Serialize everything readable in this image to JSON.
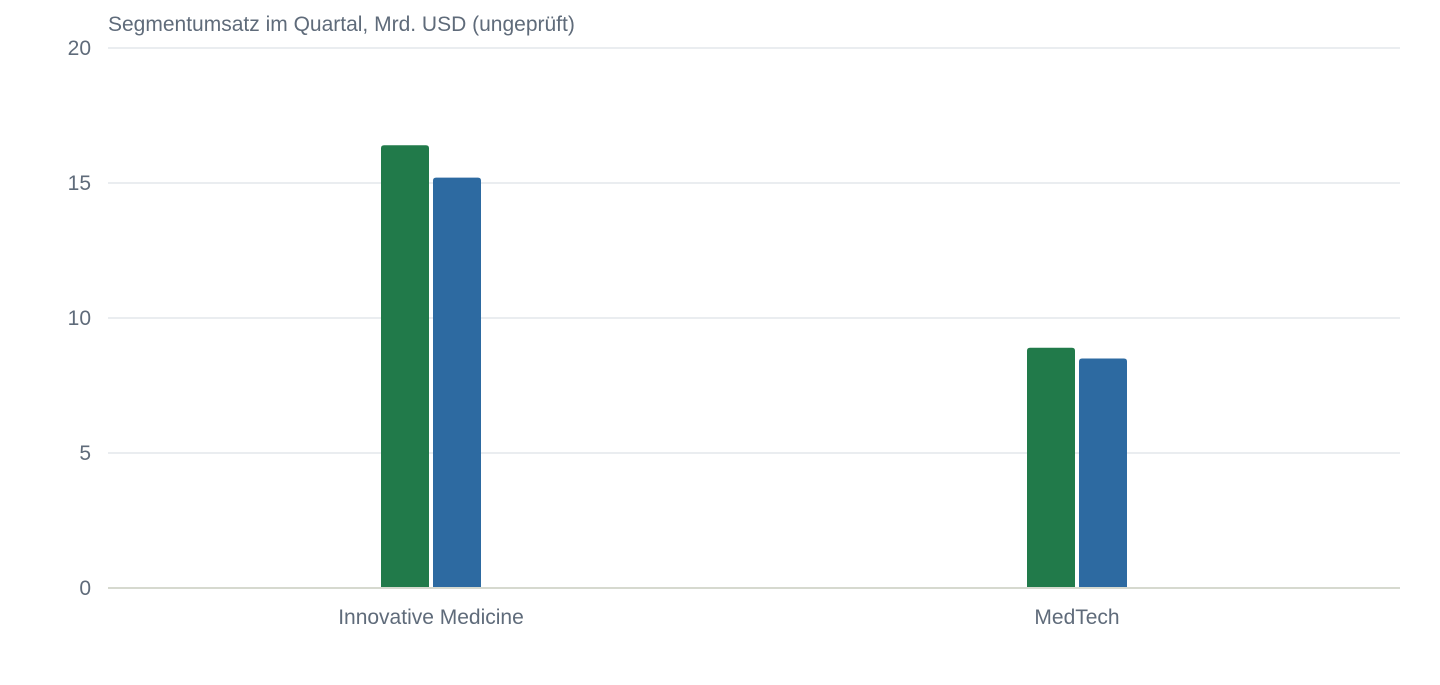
{
  "chart_data": {
    "type": "bar",
    "title": "Segmentumsatz im Quartal, Mrd. USD (ungeprüft)",
    "xlabel": "",
    "ylabel": "",
    "ylim": [
      0,
      20
    ],
    "yticks": [
      0,
      5,
      10,
      15,
      20
    ],
    "grid": true,
    "legend": "none",
    "categories": [
      "Innovative Medicine",
      "MedTech"
    ],
    "series": [
      {
        "color": "#217a4a",
        "values": [
          16.4,
          8.9
        ]
      },
      {
        "color": "#2d6aa1",
        "values": [
          15.2,
          8.5
        ]
      }
    ]
  }
}
